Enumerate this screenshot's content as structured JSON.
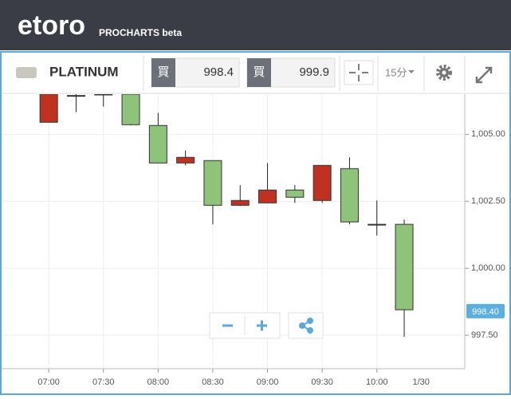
{
  "header": {
    "logo": "etoro",
    "product": "PROCHARTS beta"
  },
  "toolbar": {
    "instrument": "PLATINUM",
    "sell": {
      "icon": "買",
      "price": 998.4
    },
    "buy": {
      "icon": "買",
      "price": 999.9
    },
    "interval": "15分"
  },
  "chart_data": {
    "type": "candlestick",
    "categories": [
      "07:00",
      null,
      "07:30",
      null,
      "08:00",
      null,
      "08:30",
      null,
      "09:00",
      null,
      "09:30",
      null,
      "10:00",
      null
    ],
    "date_label": "1/30",
    "open": [
      1006.5,
      1006.45,
      1006.5,
      1005.36,
      1003.93,
      1004.14,
      1002.35,
      1002.53,
      1002.92,
      1002.65,
      1003.84,
      1001.73,
      1001.64,
      998.45
    ],
    "high": [
      1006.5,
      1006.5,
      1006.5,
      1006.5,
      1005.8,
      1004.4,
      1004.02,
      1003.1,
      1003.93,
      1003.1,
      1003.84,
      1004.14,
      1002.53,
      1001.82
    ],
    "low": [
      1005.45,
      1005.83,
      1006.04,
      1005.33,
      1003.93,
      1003.84,
      1001.64,
      1002.32,
      1002.44,
      1002.44,
      1002.44,
      1001.64,
      1001.22,
      997.44
    ],
    "close": [
      1005.45,
      1006.45,
      1006.48,
      1006.5,
      1005.33,
      1003.93,
      1004.02,
      1002.35,
      1002.44,
      1002.92,
      1002.53,
      1003.72,
      1001.64,
      1001.64
    ],
    "up_color": "#8dc47a",
    "down_color": "#c0321f",
    "ylim": [
      996.25,
      1006.5
    ],
    "yticks": [
      {
        "value": 997.5,
        "label": "997.50"
      },
      {
        "value": 1000,
        "label": "1,000.00"
      },
      {
        "value": 1002.5,
        "label": "1,002.50"
      },
      {
        "value": 1005,
        "label": "1,005.00"
      }
    ],
    "current_price": {
      "value": 998.4,
      "label": "998.40"
    },
    "grid": true
  }
}
